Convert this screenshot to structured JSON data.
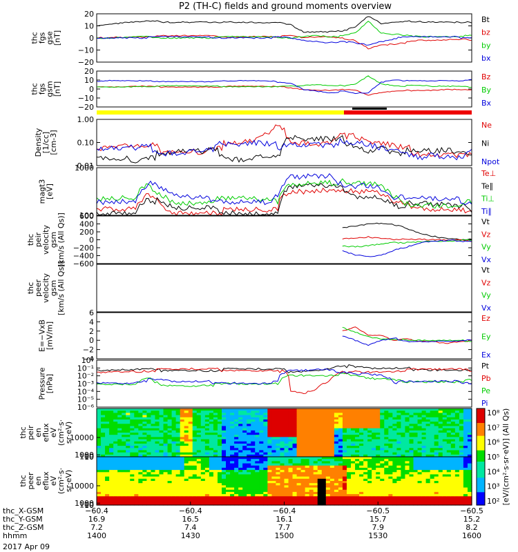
{
  "title": "P2 (TH-C) fields and ground moments overview",
  "date": "2017 Apr 09",
  "colors": {
    "black": "#000000",
    "red": "#e00000",
    "green": "#00cc00",
    "blue": "#0000dd",
    "bar_yellow": "#ffff00",
    "bar_red": "#ee0000"
  },
  "chart_data": [
    {
      "id": "fgs_gse",
      "type": "line",
      "ylabel": [
        "thc",
        "fgs",
        "gse",
        "[nT]"
      ],
      "yticks": [
        "20",
        "10",
        "0",
        "−10",
        "−20"
      ],
      "ylim": [
        -20,
        20
      ],
      "series": [
        {
          "name": "Bt",
          "color": "black",
          "values": [
            10,
            11,
            12.5,
            13.5,
            14,
            14,
            14,
            14,
            14,
            14,
            13.5,
            13,
            13,
            12.5,
            12.5,
            12,
            6,
            6,
            6,
            7,
            9,
            18,
            12,
            13,
            14,
            14.5,
            14,
            14,
            14,
            14
          ]
        },
        {
          "name": "bz",
          "color": "red",
          "values": [
            1,
            1.5,
            1.5,
            1.5,
            2,
            2,
            2,
            2,
            2,
            1.5,
            1.5,
            2,
            2,
            2,
            2,
            2,
            0,
            1,
            1,
            0,
            -1,
            -8,
            -5,
            -4,
            -3,
            -2,
            -2,
            -1.5,
            -1,
            -1
          ]
        },
        {
          "name": "by",
          "color": "green",
          "values": [
            0,
            0,
            0.5,
            1,
            1,
            1,
            1,
            1,
            1,
            1,
            1,
            1,
            1,
            1,
            1,
            1,
            2,
            3,
            2,
            2,
            4,
            14,
            4,
            3,
            3,
            2,
            2,
            2,
            2,
            2
          ]
        },
        {
          "name": "bx",
          "color": "blue",
          "values": [
            1,
            1,
            1,
            1,
            1,
            1,
            1,
            1,
            1,
            1,
            1,
            1,
            1,
            1,
            1,
            0,
            -2,
            -3,
            -4,
            -2,
            -3,
            -5,
            -2,
            0,
            1,
            1,
            1,
            1,
            1,
            1
          ]
        }
      ]
    },
    {
      "id": "fgs_gsm",
      "type": "line",
      "ylabel": [
        "thc",
        "fgs",
        "gsm",
        "[nT]"
      ],
      "yticks": [
        "20",
        "10",
        "0",
        "−10",
        "−20"
      ],
      "ylim": [
        -25,
        20
      ],
      "series": [
        {
          "name": "Bz",
          "color": "red",
          "values": [
            0,
            0,
            0.5,
            1,
            1,
            1,
            1,
            1,
            1,
            1,
            1,
            1,
            1,
            1,
            1,
            0,
            -2,
            -3,
            -3,
            -2,
            -4,
            -10,
            -7,
            -5,
            -4,
            -3,
            -3,
            -2,
            -2,
            -2
          ]
        },
        {
          "name": "By",
          "color": "green",
          "values": [
            1,
            1,
            1,
            1.5,
            1.5,
            1.5,
            1.5,
            1.5,
            1.5,
            1.5,
            1.5,
            1.5,
            1.5,
            1.5,
            1.5,
            1,
            2,
            3,
            2,
            2,
            5,
            15,
            5,
            3,
            2,
            2,
            1,
            1,
            1,
            1
          ]
        },
        {
          "name": "Bx",
          "color": "blue",
          "values": [
            7,
            8,
            8,
            8,
            8,
            8,
            8,
            8,
            8,
            7.5,
            7.5,
            8,
            8,
            8,
            7,
            6,
            -2,
            -4,
            -6,
            -5,
            -8,
            -7,
            6,
            9,
            9,
            9,
            9,
            9,
            9,
            9
          ]
        }
      ]
    },
    {
      "id": "density",
      "type": "line",
      "log": true,
      "ylabel": [
        "Density",
        "[1/cc]",
        "[cm-3]"
      ],
      "yticks": [
        "1.00",
        "0.10",
        "0.01"
      ],
      "ylim": [
        0.01,
        1.0
      ],
      "series": [
        {
          "name": "Ne",
          "color": "red",
          "values": [
            0.05,
            0.06,
            0.07,
            0.06,
            0.08,
            0.07,
            0.06,
            0.08,
            0.07,
            0.1,
            0.09,
            0.1,
            0.13,
            0.2,
            0.5,
            0.18,
            0.17,
            0.16,
            0.15,
            0.4,
            0.15,
            0.12,
            0.1,
            0.07,
            0.06,
            0.05,
            0.06,
            0.05,
            0.05,
            0.05
          ]
        },
        {
          "name": "Ni",
          "color": "black",
          "values": [
            0.04,
            0.03,
            0.04,
            0.03,
            0.04,
            0.03,
            0.04,
            0.05,
            0.04,
            0.05,
            0.04,
            0.03,
            0.04,
            0.04,
            0.04,
            0.16,
            0.15,
            0.15,
            0.14,
            0.15,
            0.12,
            0.08,
            0.1,
            0.06,
            0.05,
            0.05,
            0.04,
            0.05,
            0.04,
            0.04
          ]
        },
        {
          "name": "Npot",
          "color": "blue",
          "values": [
            0.05,
            0.06,
            0.06,
            0.06,
            0.07,
            0.06,
            0.06,
            0.07,
            0.07,
            0.09,
            0.08,
            0.09,
            0.1,
            0.09,
            0.08,
            0.16,
            0.15,
            0.14,
            0.13,
            0.12,
            0.1,
            0.08,
            0.06,
            0.05,
            0.05,
            0.04,
            0.05,
            0.04,
            0.04,
            0.04
          ]
        }
      ]
    },
    {
      "id": "temperature",
      "type": "line",
      "log": true,
      "ylabel": [
        "magt3",
        "[eV]"
      ],
      "yticks": [
        "1000",
        "100"
      ],
      "ylim": [
        40,
        8000
      ],
      "series": [
        {
          "name": "Te⊥",
          "color": "red",
          "values": [
            80,
            80,
            85,
            80,
            400,
            180,
            90,
            85,
            90,
            90,
            85,
            80,
            80,
            70,
            80,
            900,
            1000,
            1100,
            1200,
            1000,
            500,
            600,
            400,
            200,
            160,
            150,
            140,
            130,
            120,
            120
          ]
        },
        {
          "name": "Te∥",
          "color": "black",
          "values": [
            90,
            85,
            90,
            85,
            420,
            170,
            95,
            90,
            95,
            95,
            90,
            85,
            85,
            75,
            85,
            950,
            1050,
            1100,
            1200,
            1050,
            520,
            600,
            420,
            210,
            160,
            150,
            140,
            130,
            120,
            120
          ]
        },
        {
          "name": "Ti⊥",
          "color": "green",
          "values": [
            250,
            270,
            280,
            280,
            1300,
            600,
            280,
            270,
            280,
            280,
            270,
            260,
            260,
            250,
            260,
            2200,
            2400,
            2500,
            2600,
            1800,
            1300,
            1500,
            1000,
            300,
            250,
            220,
            210,
            200,
            190,
            190
          ]
        },
        {
          "name": "Ti∥",
          "color": "blue",
          "values": [
            300,
            320,
            330,
            330,
            1700,
            800,
            330,
            320,
            330,
            330,
            320,
            310,
            310,
            300,
            310,
            2800,
            3000,
            3200,
            3300,
            2200,
            1800,
            2000,
            1300,
            350,
            300,
            280,
            260,
            250,
            240,
            240
          ]
        }
      ]
    },
    {
      "id": "peir_velocity",
      "type": "line",
      "ylabel": [
        "thc",
        "peir",
        "velocity",
        "gsm",
        "[km/s (All Qs)]"
      ],
      "yticks": [
        "600",
        "400",
        "200",
        "0",
        "−200",
        "−400",
        "−600"
      ],
      "ylim": [
        -600,
        600
      ],
      "series": [
        {
          "name": "Vt",
          "color": "black",
          "start": 19,
          "values": [
            300,
            350,
            400,
            420,
            380,
            300,
            200,
            120,
            60,
            40,
            20
          ]
        },
        {
          "name": "Vz",
          "color": "red",
          "start": 19,
          "values": [
            50,
            80,
            100,
            60,
            40,
            20,
            10,
            0,
            0,
            0,
            0
          ]
        },
        {
          "name": "Vy",
          "color": "green",
          "start": 19,
          "values": [
            -150,
            -180,
            -150,
            -100,
            -60,
            -40,
            -20,
            -10,
            0,
            0,
            0
          ]
        },
        {
          "name": "Vx",
          "color": "blue",
          "start": 19,
          "values": [
            -250,
            -350,
            -400,
            -350,
            -250,
            -180,
            -80,
            -40,
            -20,
            -10,
            0
          ]
        }
      ]
    },
    {
      "id": "peer_velocity",
      "type": "line",
      "ylabel": [
        "thc",
        "peer",
        "velocity",
        "gsm",
        "[km/s (All Qs)]"
      ],
      "yticks": [],
      "series": [
        {
          "name": "Vt",
          "color": "black",
          "values": []
        },
        {
          "name": "Vz",
          "color": "red",
          "values": []
        },
        {
          "name": "Vy",
          "color": "green",
          "values": []
        },
        {
          "name": "Vx",
          "color": "blue",
          "values": []
        }
      ]
    },
    {
      "id": "efield",
      "type": "line",
      "ylabel": [
        "E=−VxB",
        "[mV/m]"
      ],
      "yticks": [
        "6",
        "4",
        "2",
        "0",
        "−2",
        "−4"
      ],
      "ylim": [
        -4,
        6
      ],
      "series": [
        {
          "name": "Ez",
          "color": "red",
          "start": 19,
          "values": [
            2,
            3,
            1,
            1,
            0,
            0.5,
            0,
            0,
            -0.5,
            0,
            0
          ]
        },
        {
          "name": "Ey",
          "color": "green",
          "start": 19,
          "values": [
            3,
            2,
            1,
            0.5,
            0.5,
            0,
            0,
            0,
            0,
            0,
            0
          ]
        },
        {
          "name": "Ex",
          "color": "blue",
          "start": 19,
          "values": [
            1,
            0,
            -1,
            0,
            0.5,
            0,
            0,
            0,
            0,
            0,
            0
          ]
        }
      ]
    },
    {
      "id": "pressure",
      "type": "line",
      "log": true,
      "ylabel": [
        "Pressure",
        "[nPa]"
      ],
      "yticks": [
        "10⁰",
        "10⁻¹",
        "10⁻²",
        "10⁻³",
        "10⁻⁴",
        "10⁻⁵",
        "10⁻⁶"
      ],
      "ylim": [
        1e-06,
        1
      ],
      "series": [
        {
          "name": "Pt",
          "color": "black",
          "values": [
            0.05,
            0.05,
            0.06,
            0.06,
            0.07,
            0.07,
            0.08,
            0.08,
            0.08,
            0.08,
            0.08,
            0.08,
            0.08,
            0.08,
            0.08,
            0.05,
            0.06,
            0.08,
            0.15,
            0.3,
            0.15,
            0.1,
            0.1,
            0.1,
            0.1,
            0.1,
            0.1,
            0.1,
            0.1,
            0.1
          ]
        },
        {
          "name": "Pb",
          "color": "red",
          "values": [
            0.04,
            0.05,
            0.06,
            0.06,
            0.07,
            0.07,
            0.07,
            0.08,
            0.08,
            0.08,
            0.08,
            0.08,
            0.08,
            0.08,
            0.07,
            0.0001,
            5e-05,
            0.0002,
            0.002,
            0.03,
            0.06,
            0.05,
            0.06,
            0.07,
            0.07,
            0.07,
            0.07,
            0.07,
            0.07,
            0.07
          ]
        },
        {
          "name": "Pe",
          "color": "green",
          "values": [
            0.0008,
            0.0008,
            0.0009,
            0.0009,
            0.005,
            0.001,
            0.0009,
            0.0009,
            0.0009,
            0.001,
            0.001,
            0.001,
            0.001,
            0.001,
            0.001,
            0.02,
            0.02,
            0.02,
            0.02,
            0.02,
            0.01,
            0.005,
            0.004,
            0.003,
            0.003,
            0.003,
            0.003,
            0.003,
            0.003,
            0.003
          ]
        },
        {
          "name": "Pi",
          "color": "blue",
          "values": [
            0.002,
            0.002,
            0.002,
            0.002,
            0.004,
            0.003,
            0.002,
            0.002,
            0.002,
            0.002,
            0.002,
            0.002,
            0.002,
            0.002,
            0.002,
            0.05,
            0.05,
            0.06,
            0.06,
            0.05,
            0.03,
            0.03,
            0.02,
            0.002,
            0.002,
            0.002,
            0.002,
            0.002,
            0.002,
            0.002
          ]
        }
      ]
    },
    {
      "id": "peir_spectrogram",
      "type": "heatmap",
      "ylabel": [
        "thc",
        "peir",
        "en",
        "eflux",
        "eV",
        "(cm²·s·",
        "sr·eV)"
      ],
      "yticks": [
        "10000",
        "1000",
        "100",
        "10"
      ],
      "ylim": [
        5,
        25000
      ],
      "z_log_range": [
        2,
        8
      ]
    },
    {
      "id": "peer_spectrogram",
      "type": "heatmap",
      "ylabel": [
        "thc",
        "peer",
        "en",
        "eflux",
        "eV",
        "(cm²·s·",
        "sr·eV)"
      ],
      "yticks": [
        "10000",
        "1000",
        "100",
        "10"
      ],
      "ylim": [
        5,
        25000
      ],
      "z_log_range": [
        2,
        8
      ]
    }
  ],
  "colorbar": {
    "ticks": [
      "10⁸",
      "10⁷",
      "10⁶",
      "10⁵",
      "10⁴",
      "10³",
      "10²"
    ],
    "label": "[eV/(cm²·s·sr·eV)]",
    "label2": "[eV/(cm²·s·sr·eV)] (All Qs)"
  },
  "xaxis": {
    "rows": [
      {
        "label": "thc_X-GSM",
        "values": [
          "−60.4",
          "−60.4",
          "−60.4",
          "−60.5",
          "−60.5"
        ]
      },
      {
        "label": "thc_Y-GSM",
        "values": [
          "16.9",
          "16.5",
          "16.1",
          "15.7",
          "15.2"
        ]
      },
      {
        "label": "thc_Z-GSM",
        "values": [
          "7.2",
          "7.4",
          "7.7",
          "7.9",
          "8.2"
        ]
      },
      {
        "label": "hhmm",
        "values": [
          "1400",
          "1430",
          "1500",
          "1530",
          "1600"
        ]
      }
    ]
  }
}
